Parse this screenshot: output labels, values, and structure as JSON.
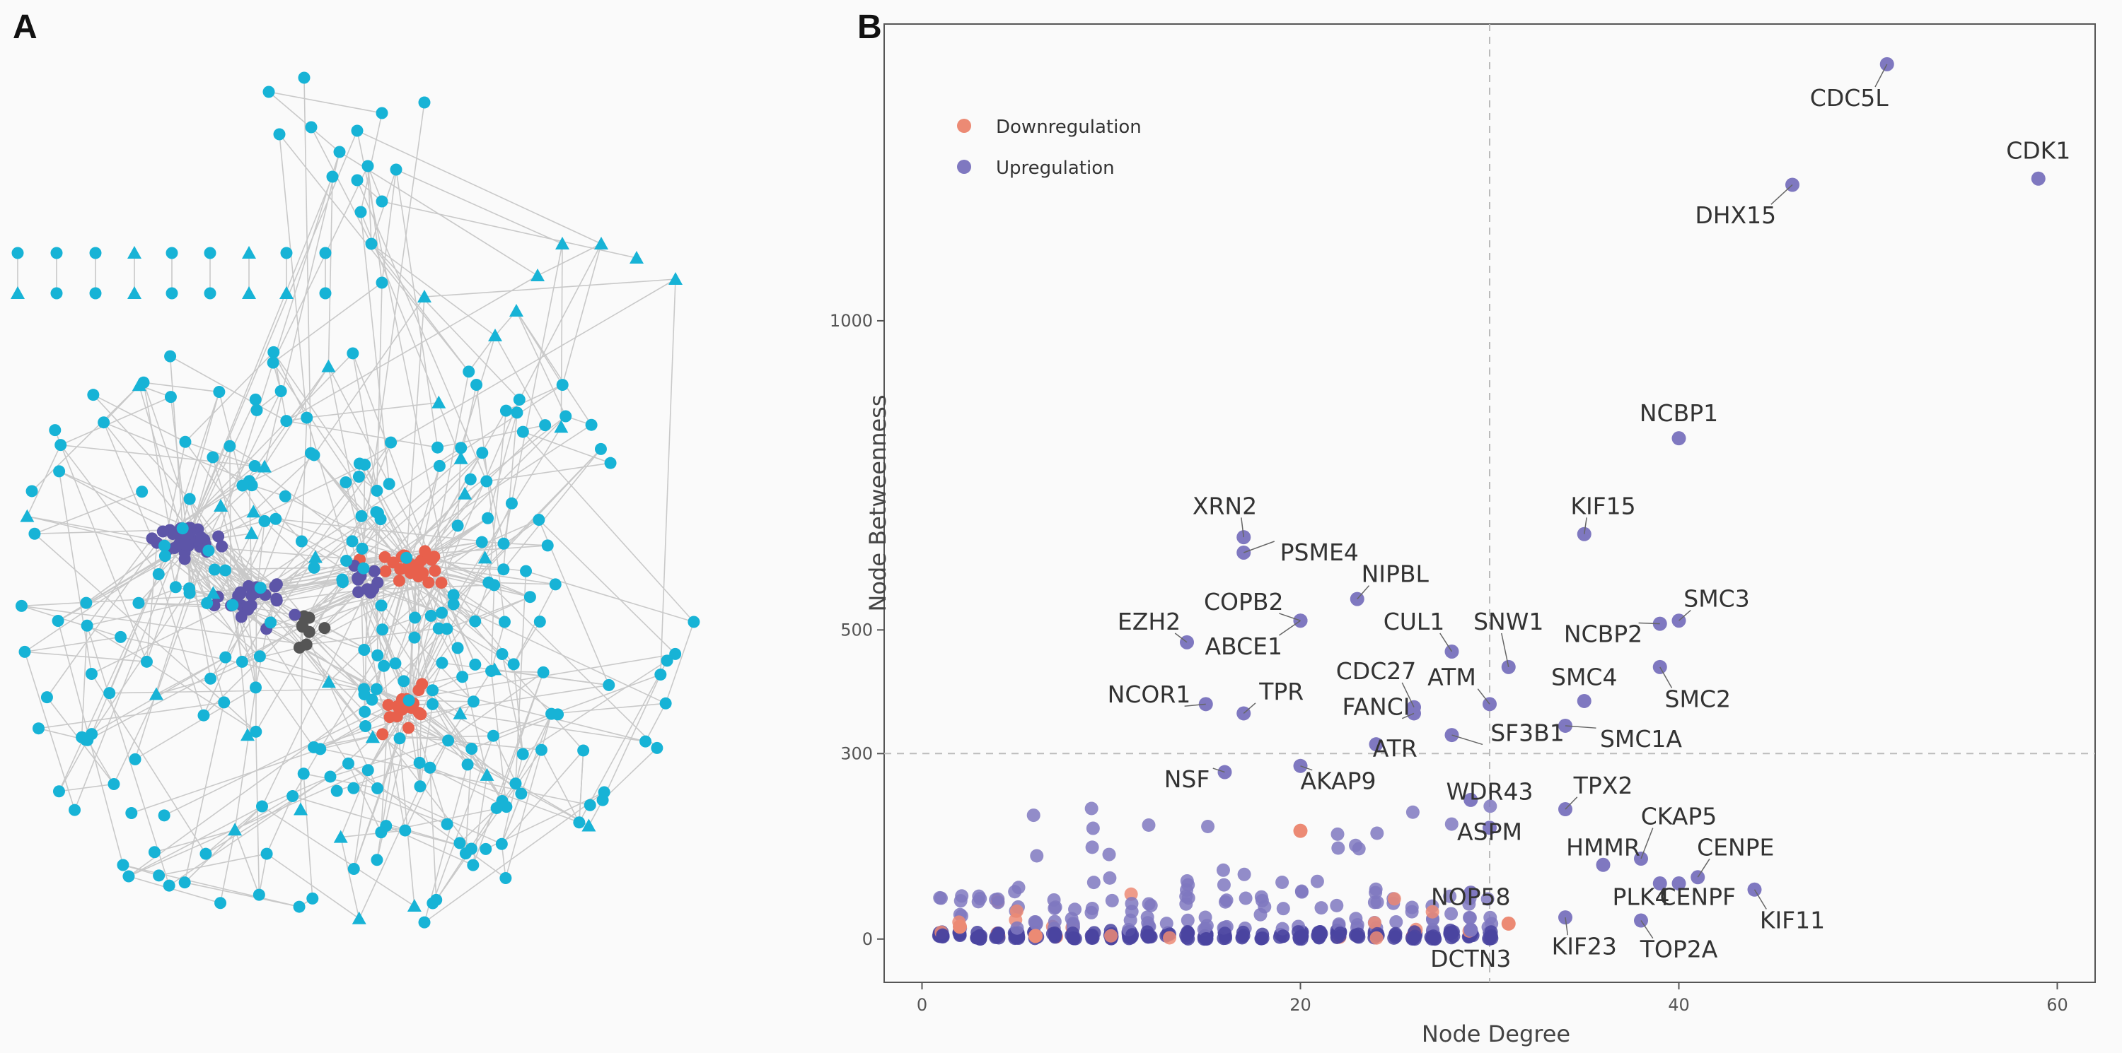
{
  "panels": {
    "a_label": "A",
    "b_label": "B"
  },
  "colors": {
    "teal": "#17b3d6",
    "purple": "#5d55a8",
    "red": "#e8604c",
    "dark": "#555555",
    "up": "#7f78c0",
    "down": "#ec8a74",
    "edge": "#c9c9c9",
    "dash": "#bbbbbb"
  },
  "chart_data": [
    {
      "type": "network",
      "title": "",
      "groups": [
        "teal",
        "purple",
        "red",
        "dark"
      ]
    },
    {
      "type": "scatter",
      "title": "",
      "xlabel": "Node Degree",
      "ylabel": "Node Betweenness",
      "xlim": [
        -2,
        62
      ],
      "ylim": [
        -70,
        1480
      ],
      "xticks": [
        0,
        20,
        40,
        60
      ],
      "yticks": [
        0,
        300,
        500,
        1000
      ],
      "thresholds": {
        "x": 30,
        "y": 300
      },
      "legend": [
        {
          "label": "Downregulation",
          "color": "#ec8a74"
        },
        {
          "label": "Upregulation",
          "color": "#7f78c0"
        }
      ],
      "series": [
        {
          "name": "Upregulation",
          "color": "#7f78c0",
          "points": [
            {
              "label": "CDC5L",
              "x": 51,
              "y": 1415,
              "lx": 49,
              "ly": 1360
            },
            {
              "label": "CDK1",
              "x": 59,
              "y": 1230,
              "lx": 59,
              "ly": 1275
            },
            {
              "label": "DHX15",
              "x": 46,
              "y": 1220,
              "lx": 43,
              "ly": 1170
            },
            {
              "label": "NCBP1",
              "x": 40,
              "y": 810,
              "lx": 40,
              "ly": 850
            },
            {
              "label": "KIF15",
              "x": 35,
              "y": 655,
              "lx": 36,
              "ly": 700
            },
            {
              "label": "XRN2",
              "x": 17,
              "y": 650,
              "lx": 16,
              "ly": 700
            },
            {
              "label": "PSME4",
              "x": 17,
              "y": 625,
              "lx": 21,
              "ly": 625
            },
            {
              "label": "NIPBL",
              "x": 23,
              "y": 550,
              "lx": 25,
              "ly": 590
            },
            {
              "label": "COPB2",
              "x": 20,
              "y": 515,
              "lx": 17,
              "ly": 545
            },
            {
              "label": "ABCE1",
              "x": 20,
              "y": 515,
              "lx": 17,
              "ly": 473
            },
            {
              "label": "EZH2",
              "x": 14,
              "y": 480,
              "lx": 12,
              "ly": 513
            },
            {
              "label": "CUL1",
              "x": 28,
              "y": 465,
              "lx": 26,
              "ly": 513
            },
            {
              "label": "SNW1",
              "x": 31,
              "y": 440,
              "lx": 31,
              "ly": 513
            },
            {
              "label": "NCBP2",
              "x": 39,
              "y": 510,
              "lx": 36,
              "ly": 493
            },
            {
              "label": "SMC3",
              "x": 40,
              "y": 515,
              "lx": 42,
              "ly": 550
            },
            {
              "label": "SMC4",
              "x": 35,
              "y": 385,
              "lx": 35,
              "ly": 423
            },
            {
              "label": "SMC2",
              "x": 39,
              "y": 440,
              "lx": 41,
              "ly": 388
            },
            {
              "label": "ATM",
              "x": 30,
              "y": 380,
              "lx": 28,
              "ly": 423
            },
            {
              "label": "CDC27",
              "x": 26,
              "y": 375,
              "lx": 24,
              "ly": 433
            },
            {
              "label": "FANCI",
              "x": 26,
              "y": 365,
              "lx": 24,
              "ly": 375
            },
            {
              "label": "NCOR1",
              "x": 15,
              "y": 380,
              "lx": 12,
              "ly": 395
            },
            {
              "label": "TPR",
              "x": 17,
              "y": 365,
              "lx": 19,
              "ly": 400
            },
            {
              "label": "SF3B1",
              "x": 28,
              "y": 330,
              "lx": 32,
              "ly": 333
            },
            {
              "label": "SMC1A",
              "x": 34,
              "y": 345,
              "lx": 38,
              "ly": 323
            },
            {
              "label": "ATR",
              "x": 24,
              "y": 315,
              "lx": 25,
              "ly": 308
            },
            {
              "label": "NSF",
              "x": 16,
              "y": 270,
              "lx": 14,
              "ly": 258
            },
            {
              "label": "AKAP9",
              "x": 20,
              "y": 280,
              "lx": 22,
              "ly": 255
            },
            {
              "label": "WDR43",
              "x": 29,
              "y": 225,
              "lx": 30,
              "ly": 238
            },
            {
              "label": "TPX2",
              "x": 34,
              "y": 210,
              "lx": 36,
              "ly": 248
            },
            {
              "label": "ASPM",
              "x": 30,
              "y": 180,
              "lx": 30,
              "ly": 173
            },
            {
              "label": "CKAP5",
              "x": 38,
              "y": 130,
              "lx": 40,
              "ly": 198
            },
            {
              "label": "HMMR",
              "x": 36,
              "y": 120,
              "lx": 36,
              "ly": 148
            },
            {
              "label": "CENPE",
              "x": 41,
              "y": 100,
              "lx": 43,
              "ly": 148
            },
            {
              "label": "PLK4",
              "x": 39,
              "y": 90,
              "lx": 38,
              "ly": 68
            },
            {
              "label": "CENPF",
              "x": 40,
              "y": 90,
              "lx": 41,
              "ly": 68
            },
            {
              "label": "NOP58",
              "x": 29,
              "y": 75,
              "lx": 29,
              "ly": 68
            },
            {
              "label": "KIF11",
              "x": 44,
              "y": 80,
              "lx": 46,
              "ly": 30
            },
            {
              "label": "KIF23",
              "x": 34,
              "y": 35,
              "lx": 35,
              "ly": -12
            },
            {
              "label": "TOP2A",
              "x": 38,
              "y": 30,
              "lx": 40,
              "ly": -17
            },
            {
              "label": "DCTN3",
              "x": 29,
              "y": 15,
              "lx": 29,
              "ly": -32
            }
          ]
        },
        {
          "name": "Downregulation",
          "color": "#ec8a74",
          "points": [
            {
              "label": "",
              "x": 31,
              "y": 25
            },
            {
              "label": "",
              "x": 20,
              "y": 175
            },
            {
              "label": "",
              "x": 6,
              "y": 5
            },
            {
              "label": "",
              "x": 2,
              "y": 20
            }
          ]
        }
      ]
    }
  ]
}
